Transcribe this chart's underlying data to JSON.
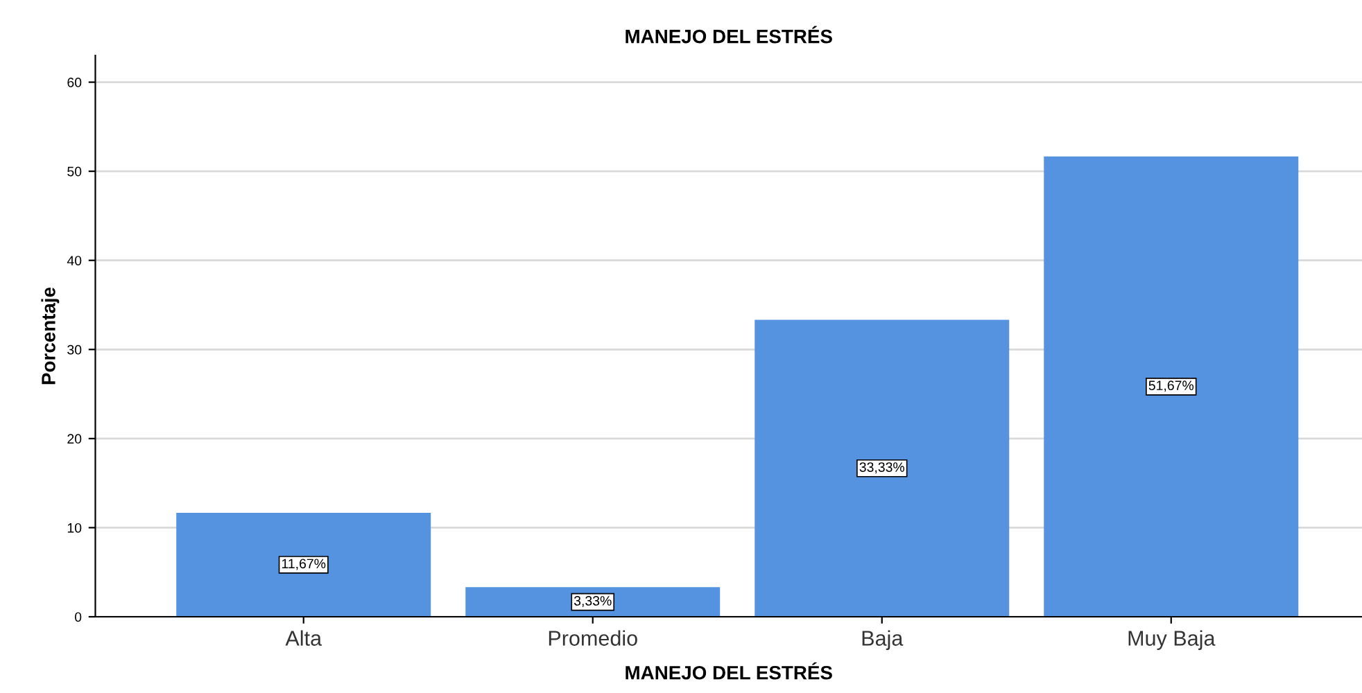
{
  "chart_data": {
    "type": "bar",
    "title": "MANEJO DEL ESTRÉS",
    "xlabel": "MANEJO DEL ESTRÉS",
    "ylabel": "Porcentaje",
    "categories": [
      "Alta",
      "Promedio",
      "Baja",
      "Muy Baja"
    ],
    "values": [
      11.67,
      3.33,
      33.33,
      51.67
    ],
    "value_labels": [
      "11,67%",
      "3,33%",
      "33,33%",
      "51,67%"
    ],
    "color": "#5592e0",
    "ylim": [
      0,
      63
    ],
    "yticks": [
      0,
      10,
      20,
      30,
      40,
      50,
      60
    ],
    "grid": "y"
  }
}
